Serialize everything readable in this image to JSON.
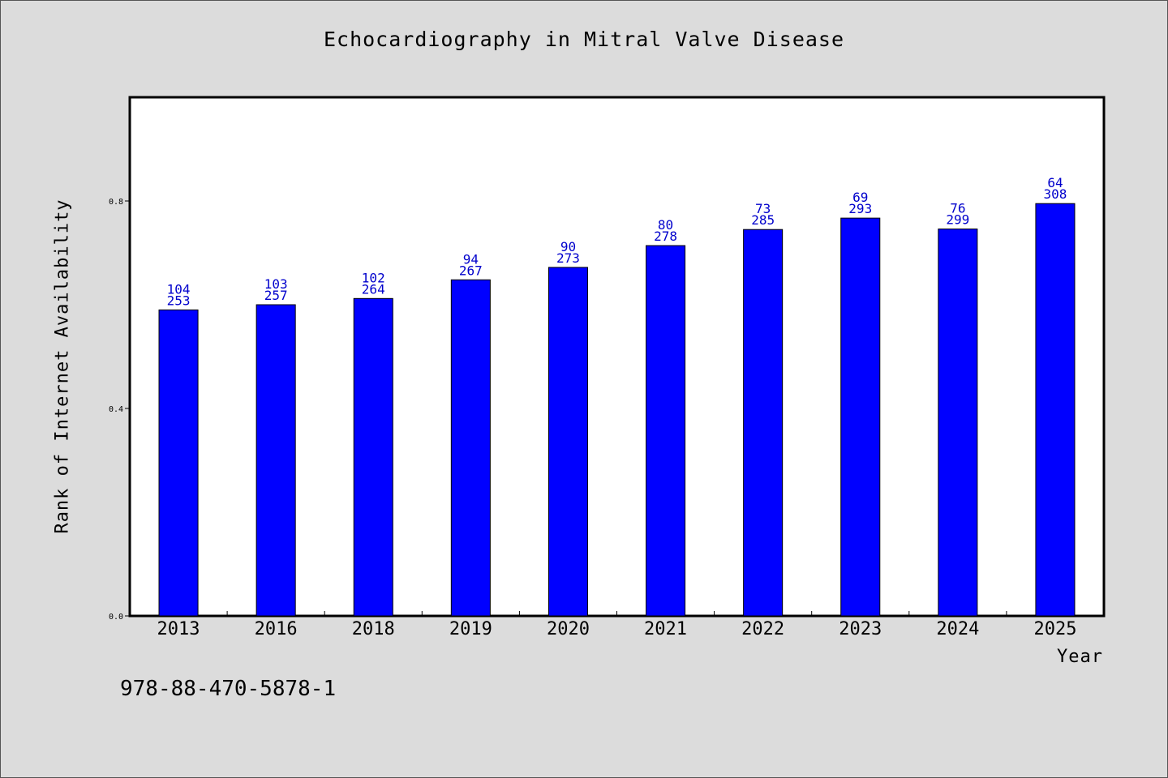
{
  "chart_data": {
    "type": "bar",
    "title": "Echocardiography in Mitral Valve Disease",
    "xlabel": "Year",
    "ylabel": "Rank of Internet Availability",
    "ylim": [
      0,
      1.0
    ],
    "yticks": [
      "0.0",
      "0.4",
      "0.8"
    ],
    "yticks_values": [
      0.0,
      0.4,
      0.8
    ],
    "categories": [
      "2013",
      "2016",
      "2018",
      "2019",
      "2020",
      "2021",
      "2022",
      "2023",
      "2024",
      "2025"
    ],
    "values": [
      0.59,
      0.6,
      0.612,
      0.648,
      0.672,
      0.714,
      0.745,
      0.767,
      0.746,
      0.795
    ],
    "label_top": [
      "104",
      "103",
      "102",
      "94",
      "90",
      "80",
      "73",
      "69",
      "76",
      "64"
    ],
    "label_bottom": [
      "253",
      "257",
      "264",
      "267",
      "273",
      "278",
      "285",
      "293",
      "299",
      "308"
    ],
    "bar_color": "#0000ff",
    "label_color": "#0000cc",
    "grid": false,
    "legend": "none"
  },
  "footer": {
    "isbn": "978-88-470-5878-1"
  }
}
